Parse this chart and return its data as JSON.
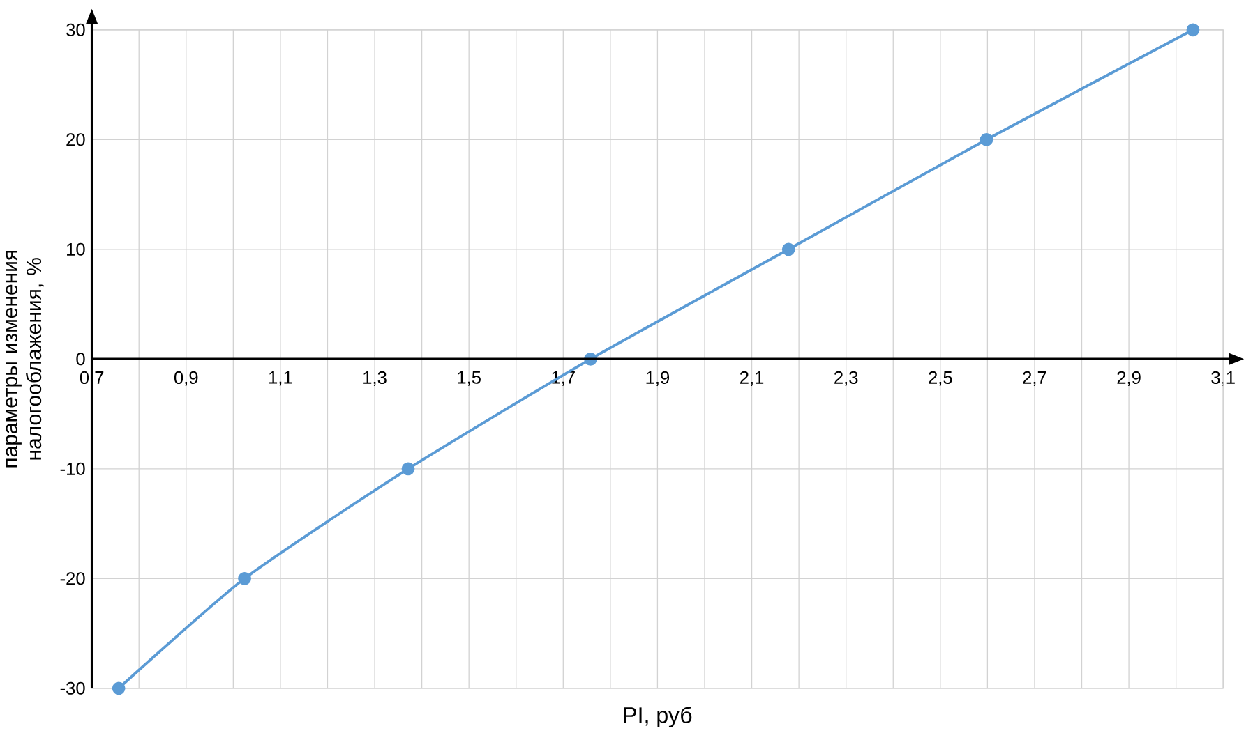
{
  "chart_data": {
    "type": "line",
    "xlabel": "PI, руб",
    "ylabel": "параметры изменения налогооблажения, %",
    "x": [
      0.757,
      1.024,
      1.371,
      1.758,
      2.178,
      2.598,
      3.036
    ],
    "series": [
      {
        "color": "#5b9bd5",
        "values": [
          -30,
          -20,
          -10,
          0,
          10,
          20,
          30
        ]
      }
    ],
    "xlim": [
      0.7,
      3.1
    ],
    "ylim": [
      -30,
      30
    ],
    "xticks": [
      {
        "value": 0.7,
        "label": "0,7"
      },
      {
        "value": 0.8,
        "label": null
      },
      {
        "value": 0.9,
        "label": "0,9"
      },
      {
        "value": 1.0,
        "label": null
      },
      {
        "value": 1.1,
        "label": "1,1"
      },
      {
        "value": 1.2,
        "label": null
      },
      {
        "value": 1.3,
        "label": "1,3"
      },
      {
        "value": 1.4,
        "label": null
      },
      {
        "value": 1.5,
        "label": "1,5"
      },
      {
        "value": 1.6,
        "label": null
      },
      {
        "value": 1.7,
        "label": "1,7"
      },
      {
        "value": 1.8,
        "label": null
      },
      {
        "value": 1.9,
        "label": "1,9"
      },
      {
        "value": 2.0,
        "label": null
      },
      {
        "value": 2.1,
        "label": "2,1"
      },
      {
        "value": 2.2,
        "label": null
      },
      {
        "value": 2.3,
        "label": "2,3"
      },
      {
        "value": 2.4,
        "label": null
      },
      {
        "value": 2.5,
        "label": "2,5"
      },
      {
        "value": 2.6,
        "label": null
      },
      {
        "value": 2.7,
        "label": "2,7"
      },
      {
        "value": 2.8,
        "label": null
      },
      {
        "value": 2.9,
        "label": "2,9"
      },
      {
        "value": 3.0,
        "label": null
      },
      {
        "value": 3.1,
        "label": "3,1"
      }
    ],
    "yticks": [
      -30,
      -20,
      -10,
      0,
      10,
      20,
      30
    ],
    "grid": true,
    "marker": "circle",
    "line_style": "solid"
  }
}
